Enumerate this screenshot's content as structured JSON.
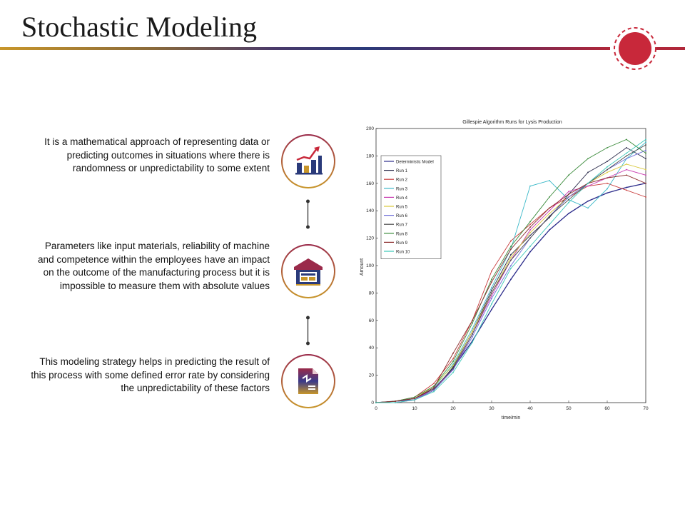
{
  "slide": {
    "title": "Stochastic Modeling"
  },
  "items": [
    {
      "text": "It is a mathematical approach of representing data or predicting outcomes in situations where there is randomness or unpredictability to some extent",
      "icon": "bar-chart-growth-icon"
    },
    {
      "text": "Parameters like input materials, reliability of machine and competence within the employees have an impact on the outcome of the manufacturing process but it is impossible to measure them with absolute values",
      "icon": "warehouse-icon"
    },
    {
      "text": "This modeling strategy helps in predicting the result of this process with some defined error rate by considering the unpredictability of these factors",
      "icon": "document-flow-icon"
    }
  ],
  "colors": {
    "accent_red": "#c8283a",
    "accent_gold": "#c8962a",
    "accent_navy": "#2a3a7a"
  },
  "chart_data": {
    "type": "line",
    "title": "Gillespie Algorithm Runs for Lysis Production",
    "xlabel": "time/min",
    "ylabel": "Amount",
    "xlim": [
      0,
      70
    ],
    "ylim": [
      0,
      200
    ],
    "x_ticks": [
      "0",
      "10",
      "20",
      "30",
      "40",
      "50",
      "60",
      "70"
    ],
    "y_ticks": [
      "0",
      "20",
      "40",
      "60",
      "80",
      "100",
      "120",
      "140",
      "160",
      "180",
      "200"
    ],
    "legend_position": "top-left",
    "series": [
      {
        "name": "Deterministic Model",
        "color": "#2a2a8a",
        "x": [
          0,
          5,
          10,
          15,
          20,
          25,
          30,
          35,
          40,
          45,
          50,
          55,
          60,
          65,
          70
        ],
        "values": [
          0,
          1,
          3,
          10,
          25,
          45,
          68,
          90,
          110,
          126,
          138,
          147,
          153,
          157,
          160
        ]
      },
      {
        "name": "Run 1",
        "color": "#2a2a4a",
        "x": [
          0,
          5,
          10,
          15,
          20,
          25,
          30,
          35,
          40,
          45,
          50,
          55,
          60,
          65,
          70
        ],
        "values": [
          0,
          1,
          2,
          9,
          26,
          52,
          82,
          108,
          122,
          135,
          152,
          168,
          176,
          186,
          178
        ]
      },
      {
        "name": "Run 2",
        "color": "#c83a3a",
        "x": [
          0,
          5,
          10,
          15,
          20,
          25,
          30,
          35,
          40,
          45,
          50,
          55,
          60,
          65,
          70
        ],
        "values": [
          0,
          1,
          4,
          14,
          32,
          60,
          96,
          118,
          130,
          142,
          150,
          158,
          160,
          155,
          150
        ]
      },
      {
        "name": "Run 3",
        "color": "#3ab8c8",
        "x": [
          0,
          5,
          10,
          15,
          20,
          25,
          30,
          35,
          40,
          45,
          50,
          55,
          60,
          65,
          70
        ],
        "values": [
          0,
          1,
          3,
          11,
          28,
          54,
          84,
          112,
          158,
          162,
          148,
          142,
          156,
          178,
          190
        ]
      },
      {
        "name": "Run 4",
        "color": "#c83ab0",
        "x": [
          0,
          5,
          10,
          15,
          20,
          25,
          30,
          35,
          40,
          45,
          50,
          55,
          60,
          65,
          70
        ],
        "values": [
          0,
          0,
          2,
          10,
          24,
          50,
          78,
          104,
          126,
          140,
          154,
          158,
          164,
          170,
          166
        ]
      },
      {
        "name": "Run 5",
        "color": "#d8c83a",
        "x": [
          0,
          5,
          10,
          15,
          20,
          25,
          30,
          35,
          40,
          45,
          50,
          55,
          60,
          65,
          70
        ],
        "values": [
          0,
          1,
          3,
          12,
          27,
          52,
          80,
          106,
          124,
          138,
          150,
          160,
          168,
          174,
          170
        ]
      },
      {
        "name": "Run 6",
        "color": "#6a6ad8",
        "x": [
          0,
          5,
          10,
          15,
          20,
          25,
          30,
          35,
          40,
          45,
          50,
          55,
          60,
          65,
          70
        ],
        "values": [
          0,
          1,
          2,
          9,
          24,
          48,
          76,
          100,
          120,
          136,
          150,
          160,
          170,
          178,
          184
        ]
      },
      {
        "name": "Run 7",
        "color": "#4a4a4a",
        "x": [
          0,
          5,
          10,
          15,
          20,
          25,
          30,
          35,
          40,
          45,
          50,
          55,
          60,
          65,
          70
        ],
        "values": [
          0,
          1,
          3,
          10,
          25,
          50,
          80,
          104,
          120,
          136,
          148,
          160,
          170,
          180,
          188
        ]
      },
      {
        "name": "Run 8",
        "color": "#3a8a3a",
        "x": [
          0,
          5,
          10,
          15,
          20,
          25,
          30,
          35,
          40,
          45,
          50,
          55,
          60,
          65,
          70
        ],
        "values": [
          0,
          1,
          4,
          12,
          30,
          58,
          90,
          114,
          132,
          150,
          166,
          178,
          186,
          192,
          182
        ]
      },
      {
        "name": "Run 9",
        "color": "#8a2a2a",
        "x": [
          0,
          5,
          10,
          15,
          20,
          25,
          30,
          35,
          40,
          45,
          50,
          55,
          60,
          65,
          70
        ],
        "values": [
          0,
          1,
          3,
          11,
          36,
          60,
          88,
          112,
          128,
          142,
          152,
          160,
          164,
          166,
          160
        ]
      },
      {
        "name": "Run 10",
        "color": "#3ac8b8",
        "x": [
          0,
          5,
          10,
          15,
          20,
          25,
          30,
          35,
          40,
          45,
          50,
          55,
          60,
          65,
          70
        ],
        "values": [
          0,
          0,
          2,
          8,
          22,
          44,
          72,
          98,
          114,
          130,
          146,
          160,
          172,
          182,
          192
        ]
      }
    ]
  }
}
